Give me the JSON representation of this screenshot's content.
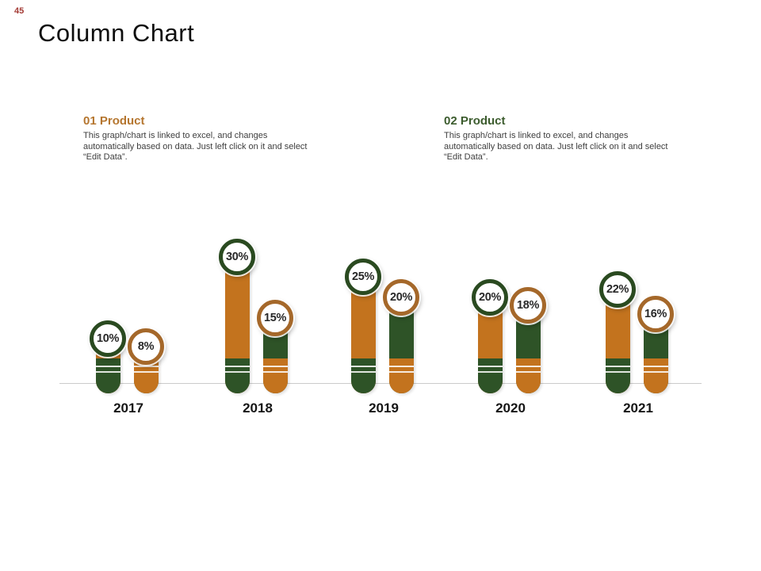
{
  "page": {
    "number": "45",
    "title": "Column Chart"
  },
  "legends": [
    {
      "heading": "01 Product",
      "description": "This graph/chart is linked to excel, and changes automatically based on data. Just left click on it and select “Edit Data”.",
      "color": "#B5762F"
    },
    {
      "heading": "02 Product",
      "description": "This graph/chart is linked to excel, and changes automatically based on data. Just left click on it and select “Edit Data”.",
      "color": "#3C5C2E"
    }
  ],
  "chart_data": {
    "type": "bar",
    "title": "Column Chart",
    "categories": [
      "2017",
      "2018",
      "2019",
      "2020",
      "2021"
    ],
    "series": [
      {
        "name": "01 Product",
        "values": [
          10,
          30,
          25,
          20,
          22
        ],
        "bar_color": "#C3731E",
        "cap_color": "#2E5327",
        "ring_color": "#2A4A20"
      },
      {
        "name": "02 Product",
        "values": [
          8,
          15,
          20,
          18,
          16
        ],
        "bar_color": "#2E5327",
        "cap_color": "#C3731E",
        "ring_color": "#A5682A"
      }
    ],
    "value_label_format": "{v}%",
    "xlabel": "",
    "ylabel": "",
    "ylim": [
      0,
      35
    ],
    "grid": false,
    "axis_color": "#CBCBCB",
    "legend_position": "top"
  }
}
